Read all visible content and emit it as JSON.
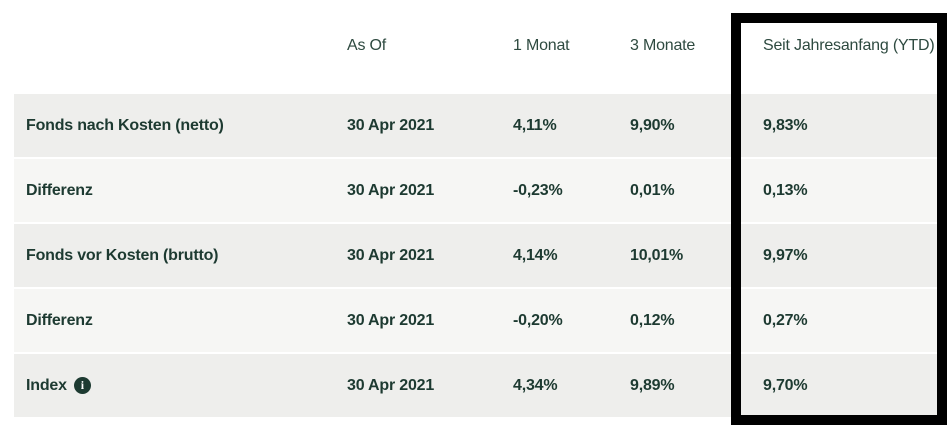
{
  "table": {
    "headers": {
      "label": "",
      "as_of": "As Of",
      "one_month": "1 Monat",
      "three_months": "3 Monate",
      "ytd": "Seit Jahresanfang (YTD)"
    },
    "rows": [
      {
        "label": "Fonds nach Kosten (netto)",
        "as_of": "30 Apr 2021",
        "one_month": "4,11%",
        "three_months": "9,90%",
        "ytd": "9,83%"
      },
      {
        "label": "Differenz",
        "as_of": "30 Apr 2021",
        "one_month": "-0,23%",
        "three_months": "0,01%",
        "ytd": "0,13%"
      },
      {
        "label": "Fonds vor Kosten (brutto)",
        "as_of": "30 Apr 2021",
        "one_month": "4,14%",
        "three_months": "10,01%",
        "ytd": "9,97%"
      },
      {
        "label": "Differenz",
        "as_of": "30 Apr 2021",
        "one_month": "-0,20%",
        "three_months": "0,12%",
        "ytd": "0,27%"
      },
      {
        "label": "Index",
        "as_of": "30 Apr 2021",
        "one_month": "4,34%",
        "three_months": "9,89%",
        "ytd": "9,70%"
      }
    ]
  },
  "icons": {
    "info_glyph": "i"
  },
  "annotation": {
    "target": "ytd-column",
    "color": "#000000"
  },
  "colors": {
    "text_dark_green": "#1d3a31",
    "header_green": "#2e4a40",
    "row_odd_bg": "#eeeeec",
    "row_even_bg": "#f6f6f4",
    "page_bg": "#ffffff",
    "highlight": "#000000"
  }
}
